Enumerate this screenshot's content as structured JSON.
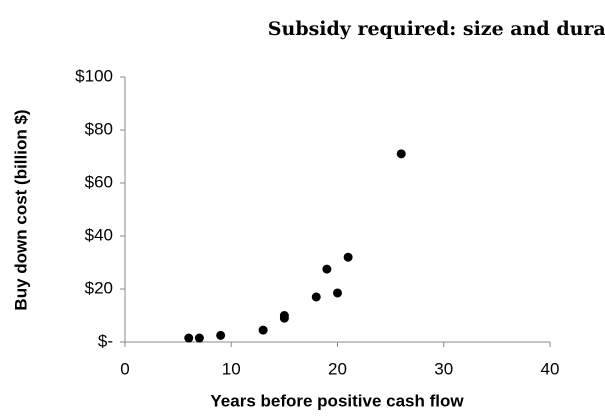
{
  "chart_data": {
    "type": "scatter",
    "title": "Subsidy required: size and duration",
    "x_label": "Years before positive cash flow",
    "y_label": "Buy down cost (billion $)",
    "x": [
      6,
      7,
      9,
      13,
      15,
      15,
      18,
      19,
      20,
      21,
      26
    ],
    "values": [
      1.5,
      1.5,
      2.5,
      4.5,
      9,
      10,
      17,
      27.5,
      18.5,
      32,
      71
    ],
    "color": "#000000",
    "xlim": [
      0,
      40
    ],
    "xticks": [
      0,
      10,
      20,
      30,
      40
    ],
    "ylim": [
      0,
      100
    ],
    "yticks": [
      {
        "value": 0,
        "label": "$-"
      },
      {
        "value": 20,
        "label": "$20"
      },
      {
        "value": 40,
        "label": "$40"
      },
      {
        "value": 60,
        "label": "$60"
      },
      {
        "value": 80,
        "label": "$80"
      },
      {
        "value": 100,
        "label": "$100"
      }
    ],
    "grid": false
  }
}
